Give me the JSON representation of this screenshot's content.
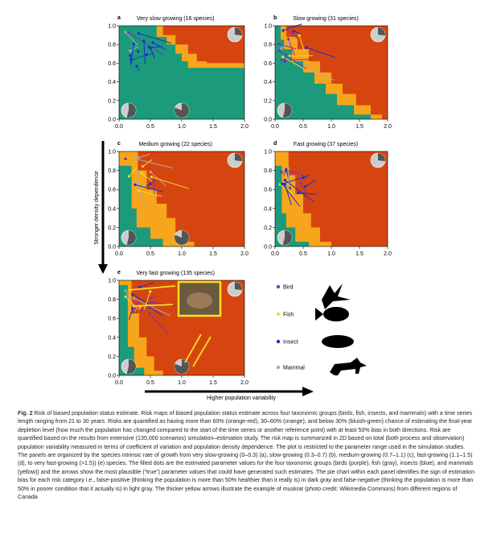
{
  "panels": [
    {
      "letter": "a",
      "title": "Very slow growing (16 species)"
    },
    {
      "letter": "b",
      "title": "Slow growing (31 species)"
    },
    {
      "letter": "c",
      "title": "Medium growing (22 species)"
    },
    {
      "letter": "d",
      "title": "Fast growing (37 species)"
    },
    {
      "letter": "e",
      "title": "Very fast growing (135 species)"
    }
  ],
  "xticks": [
    "0.0",
    "0.5",
    "1.0",
    "1.5",
    "2.0"
  ],
  "yticks": [
    "0.0",
    "0.2",
    "0.4",
    "0.6",
    "0.8",
    "1.0"
  ],
  "legend": [
    "Bird",
    "Fish",
    "Insect",
    "Mammal"
  ],
  "y_axis_label": "Stronger density dependence",
  "x_axis_label": "Higher population variability",
  "caption": {
    "label": "Fig. 2",
    "text": "Risk of biased population status estimate. Risk maps of biased population status estimate across four taxonomic groups (birds, fish, insects, and mammals) with a time series length ranging from 21 to 30 years. Risks are quantified as having more than 60% (orange-red), 30–60% (orange), and below 30% (bluish-green) chance of estimating the final-year depletion level (how much the population has changed compared to the start of the time series or another reference point) with at least 50% bias in both directions. Risk are quantified based on the results from extensive (135,000 scenarios) simulation–estimation study. The risk map is summarized in 2D based on total (both process and observation) population variability measured in terms of coefficient of variation and population density dependence. The plot is restricted to the parameter range used in the simulation studies. The panels are organized by the species intrinsic rate of growth from very slow-growing (0–0.3) (a), slow-growing (0.3–0.7) (b), medium-growing (0.7–1.1) (c), fast-growing (1.1–1.5) (d), to very fast-growing (>1.5)) (e) species. The filled dots are the estimated parameter values for the four taxonomic groups (birds (purple), fish (gray), insects (blue), and mammals (yellow)) and the arrows show the most plausible (“true”) parameter values that could have generated such estimates. The pie chart within each panel identifies the sign of estimation bias for each risk category i.e., false-positive (thinking the population is more than 50% healthier than it really is) in dark gray and false-negative (thinking the population is more than 50% in poorer condition that it actually is) in light gray. The thicker yellow arrows illustrate the example of muskrat (photo credit: Wikimedia Commons) from different regions of Canada"
  }
}
